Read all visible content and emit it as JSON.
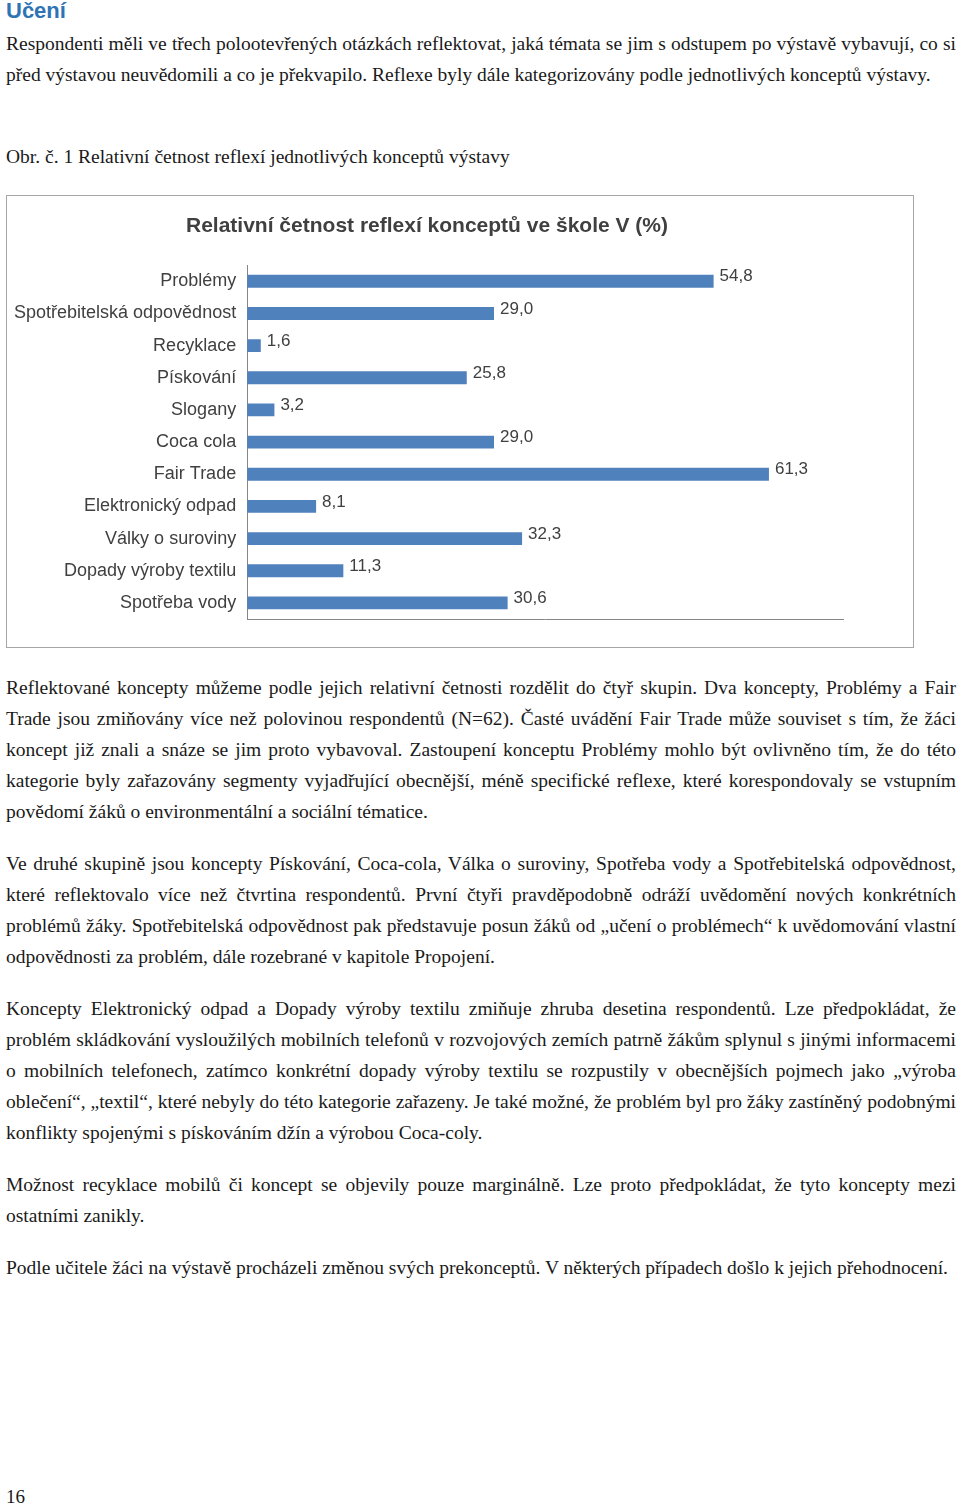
{
  "heading": "Učení",
  "intro": "Respondenti měli ve třech polootevřených otázkách reflektovat, jaká témata se jim s odstupem po výstavě vybavují, co si před výstavou neuvědomili a co je překvapilo. Reflexe byly dále kategorizovány podle jednotlivých konceptů výstavy.",
  "figure_caption": "Obr. č. 1 Relativní četnost reflexí jednotlivých konceptů výstavy",
  "chart_data": {
    "type": "bar",
    "orientation": "horizontal",
    "title": "Relativní četnost reflexí konceptů ve škole V (%)",
    "categories": [
      "Problémy",
      "Spotřebitelská odpovědnost",
      "Recyklace",
      "Pískování",
      "Slogany",
      "Coca cola",
      "Fair Trade",
      "Elektronický odpad",
      "Války o suroviny",
      "Dopady výroby textilu",
      "Spotřeba vody"
    ],
    "values": [
      54.8,
      29.0,
      1.6,
      25.8,
      3.2,
      29.0,
      61.3,
      8.1,
      32.3,
      11.3,
      30.6
    ],
    "value_labels": [
      "54,8",
      "29,0",
      "1,6",
      "25,8",
      "3,2",
      "29,0",
      "61,3",
      "8,1",
      "32,3",
      "11,3",
      "30,6"
    ],
    "data_labels": true,
    "color": "#4f81bd",
    "xlim": [
      0,
      70
    ],
    "grid": false,
    "tick_labels": "y"
  },
  "paragraphs": [
    "Reflektované koncepty můžeme podle jejich relativní četnosti rozdělit do čtyř skupin. Dva koncepty, Problémy a Fair Trade jsou zmiňovány více než polovinou respondentů (N=62). Časté uvádění Fair Trade může souviset s tím, že žáci koncept již znali a snáze se jim proto vybavoval. Zastoupení konceptu Problémy mohlo být ovlivněno tím, že do této kategorie byly zařazovány segmenty vyjadřující obecnější, méně specifické reflexe, které korespondovaly se vstupním povědomí žáků o environmentální a sociální tématice.",
    "Ve druhé skupině jsou koncepty Pískování, Coca-cola, Válka o suroviny, Spotřeba vody a Spotřebitelská odpovědnost, které reflektovalo více než čtvrtina respondentů. První čtyři pravděpodobně odráží uvědomění nových konkrétních problémů žáky. Spotřebitelská odpovědnost pak představuje posun žáků od „učení o problémech“ k uvědomování vlastní odpovědnosti za problém, dále rozebrané v kapitole Propojení.",
    "Koncepty Elektronický odpad a Dopady výroby textilu zmiňuje zhruba desetina respondentů. Lze předpokládat, že problém skládkování vysloužilých mobilních telefonů v rozvojových zemích patrně žákům splynul s jinými informacemi o mobilních telefonech, zatímco konkrétní dopady výroby textilu se rozpustily v obecnějších pojmech jako „výroba oblečení“, „textil“, které nebyly do této kategorie zařazeny. Je také možné, že problém byl pro žáky zastíněný podobnými konflikty spojenými s pískováním džín a výrobou Coca-coly.",
    "Možnost recyklace mobilů či koncept se objevily pouze marginálně. Lze proto předpokládat, že tyto koncepty mezi ostatními zanikly.",
    "Podle učitele žáci na výstavě procházeli změnou svých prekonceptů. V některých případech došlo k jejich přehodnocení."
  ],
  "page_number": "16"
}
